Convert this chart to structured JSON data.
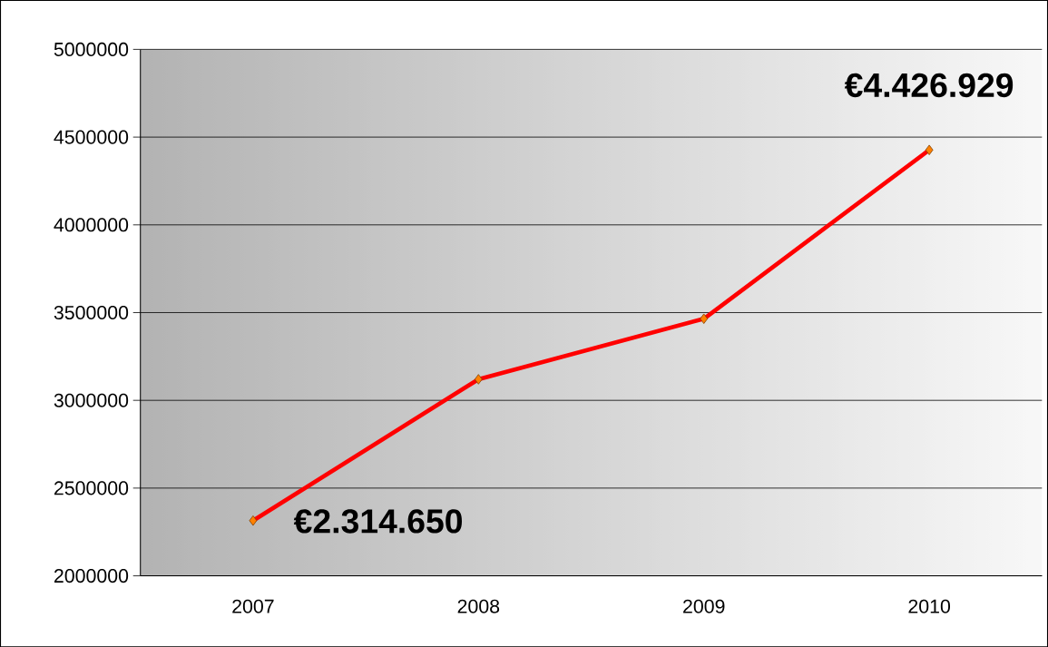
{
  "chart_data": {
    "type": "line",
    "categories": [
      "2007",
      "2008",
      "2009",
      "2010"
    ],
    "series": [
      {
        "color": "#ff0000",
        "values": [
          2314650,
          3120000,
          3465000,
          4426929
        ]
      }
    ],
    "ylim": [
      2000000,
      5000000
    ],
    "yticks": [
      2000000,
      2500000,
      3000000,
      3500000,
      4000000,
      4500000,
      5000000
    ],
    "grid": "y",
    "marker": "diamond",
    "line_style": "solid",
    "annotations": [
      {
        "text": "€2.314.650",
        "x": "2007",
        "y": 2314650
      },
      {
        "text": "€4.426.929",
        "x": "2010",
        "y": 4426929
      }
    ]
  }
}
